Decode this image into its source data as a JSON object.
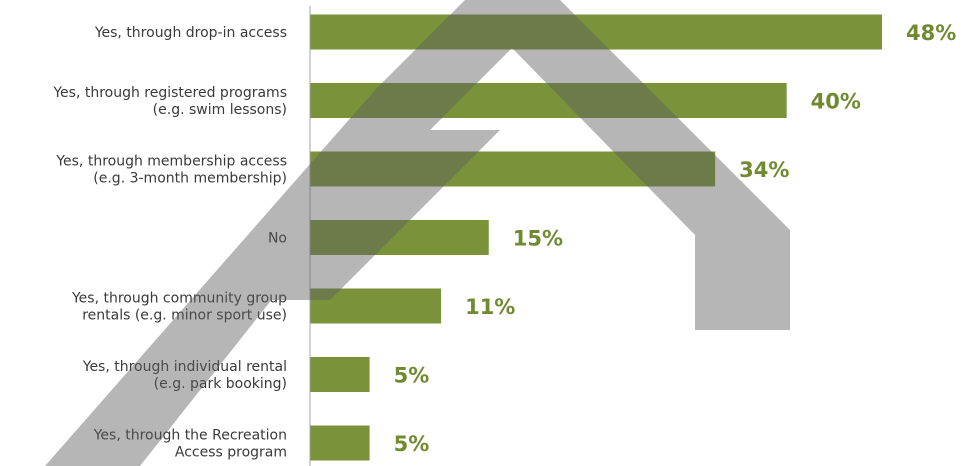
{
  "chart_data": {
    "type": "bar",
    "orientation": "horizontal",
    "categories": [
      [
        "Yes, through drop-in access"
      ],
      [
        "Yes, through registered programs",
        "(e.g. swim lessons)"
      ],
      [
        "Yes, through membership access",
        "(e.g. 3-month membership)"
      ],
      [
        "No"
      ],
      [
        "Yes, through community group",
        "rentals (e.g. minor sport use)"
      ],
      [
        "Yes, through individual rental",
        "(e.g. park booking)"
      ],
      [
        "Yes, through the Recreation",
        "Access program"
      ]
    ],
    "values": [
      48,
      40,
      34,
      15,
      11,
      5,
      5
    ],
    "value_labels": [
      "48%",
      "40%",
      "34%",
      "15%",
      "11%",
      "5%",
      "5%"
    ],
    "xlim": [
      0,
      48
    ],
    "grid": false,
    "legend": "none"
  },
  "colors": {
    "bar": "#7a933b",
    "value_label": "#6f8a2f",
    "axis": "#a6a6a6",
    "watermark": "#5e5e5e"
  }
}
